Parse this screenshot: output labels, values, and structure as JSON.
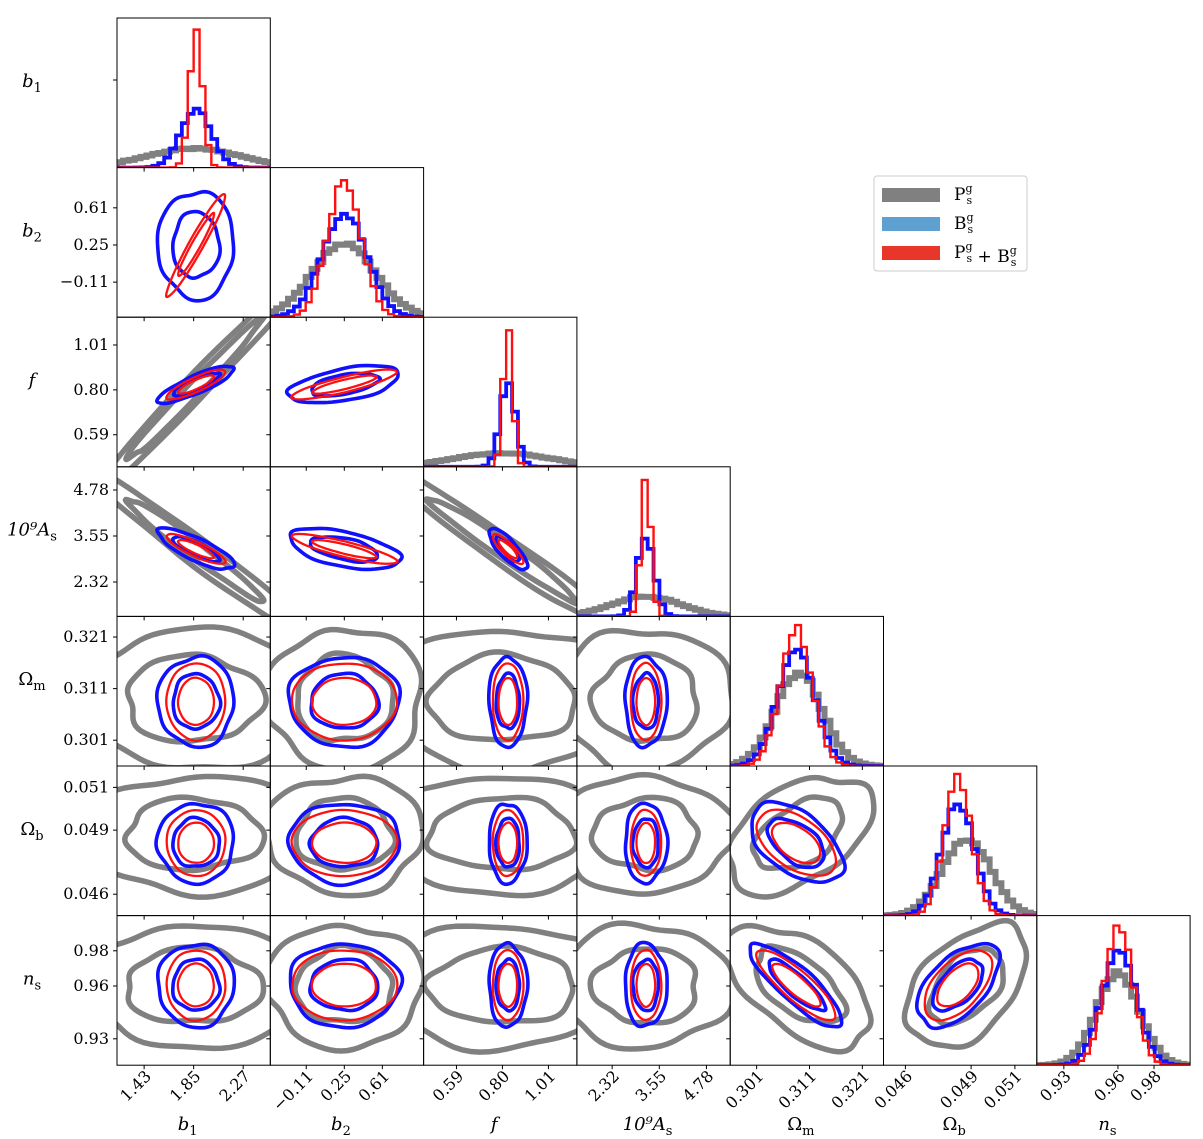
{
  "chart_data": {
    "type": "corner",
    "title": "",
    "parameters": [
      {
        "label_main": "b",
        "label_sub": "1",
        "label_style": "italic",
        "range": [
          1.2,
          2.5
        ],
        "ticks": [
          1.43,
          1.85,
          2.27
        ],
        "tick_labels": [
          "1.43",
          "1.85",
          "2.27"
        ]
      },
      {
        "label_main": "b",
        "label_sub": "2",
        "label_style": "italic",
        "range": [
          -0.45,
          1.0
        ],
        "ticks": [
          -0.11,
          0.25,
          0.61
        ],
        "tick_labels": [
          "−0.11",
          "0.25",
          "0.61"
        ]
      },
      {
        "label_main": "f",
        "label_sub": "",
        "label_style": "italic",
        "range": [
          0.44,
          1.14
        ],
        "ticks": [
          0.59,
          0.8,
          1.01
        ],
        "tick_labels": [
          "0.59",
          "0.80",
          "1.01"
        ]
      },
      {
        "label_main": "10⁹A",
        "label_sub": "s",
        "label_style": "mixed",
        "range": [
          1.4,
          5.4
        ],
        "ticks": [
          2.32,
          3.55,
          4.78
        ],
        "tick_labels": [
          "2.32",
          "3.55",
          "4.78"
        ]
      },
      {
        "label_main": "Ω",
        "label_sub": "m",
        "label_style": "roman",
        "range": [
          0.296,
          0.325
        ],
        "ticks": [
          0.301,
          0.311,
          0.321
        ],
        "tick_labels": [
          "0.301",
          "0.311",
          "0.321"
        ]
      },
      {
        "label_main": "Ω",
        "label_sub": "b",
        "label_style": "roman",
        "range": [
          0.045,
          0.052
        ],
        "ticks": [
          0.046,
          0.049,
          0.051
        ],
        "tick_labels": [
          "0.046",
          "0.049",
          "0.051"
        ]
      },
      {
        "label_main": "n",
        "label_sub": "s",
        "label_style": "italic",
        "range": [
          0.915,
          1.0
        ],
        "ticks": [
          0.93,
          0.96,
          0.98
        ],
        "tick_labels": [
          "0.93",
          "0.96",
          "0.98"
        ]
      }
    ],
    "series": [
      {
        "name": "P_s^g",
        "legend_main": "P",
        "legend_sup": "g",
        "legend_sub": "s",
        "color": "#808080",
        "means": [
          1.85,
          0.25,
          0.8,
          3.2,
          0.309,
          0.0488,
          0.96
        ],
        "sigmas": [
          0.38,
          0.3,
          0.22,
          0.9,
          0.0055,
          0.0011,
          0.014
        ],
        "correlations": [
          [
            0,
            2,
            0.99
          ],
          [
            0,
            3,
            -0.98
          ],
          [
            2,
            3,
            -0.98
          ],
          [
            4,
            6,
            -0.55
          ],
          [
            5,
            6,
            0.45
          ],
          [
            4,
            5,
            0.45
          ]
        ],
        "pairs": [
          [
            0,
            2
          ],
          [
            0,
            3
          ],
          [
            2,
            3
          ],
          [
            0,
            4
          ],
          [
            1,
            4
          ],
          [
            2,
            4
          ],
          [
            3,
            4
          ],
          [
            0,
            5
          ],
          [
            1,
            5
          ],
          [
            2,
            5
          ],
          [
            3,
            5
          ],
          [
            4,
            5
          ],
          [
            0,
            6
          ],
          [
            1,
            6
          ],
          [
            2,
            6
          ],
          [
            3,
            6
          ],
          [
            4,
            6
          ],
          [
            5,
            6
          ]
        ],
        "hist_sigmas": [
          0.4,
          0.3,
          0.22,
          0.9,
          0.0045,
          0.0011,
          0.012
        ]
      },
      {
        "name": "B_s^g",
        "legend_main": "B",
        "legend_sup": "g",
        "legend_sub": "s",
        "color": "#1010ff",
        "legend_color": "#5ea1d1",
        "means": [
          1.87,
          0.25,
          0.825,
          3.2,
          0.3085,
          0.0484,
          0.9605
        ],
        "sigmas": [
          0.13,
          0.21,
          0.035,
          0.22,
          0.0035,
          0.00075,
          0.0095
        ],
        "correlations": [
          [
            0,
            2,
            0.85
          ],
          [
            0,
            3,
            -0.8
          ],
          [
            2,
            3,
            -0.8
          ],
          [
            1,
            2,
            0.5
          ],
          [
            1,
            3,
            -0.5
          ],
          [
            4,
            6,
            -0.85
          ],
          [
            5,
            6,
            0.55
          ],
          [
            4,
            5,
            -0.5
          ]
        ],
        "hist_sigmas": [
          0.13,
          0.21,
          0.035,
          0.22,
          0.0035,
          0.00075,
          0.0095
        ]
      },
      {
        "name": "P_s^g + B_s^g",
        "legend_main": "P",
        "legend_sup": "g",
        "legend_sub": "s",
        "legend_main2": "B",
        "legend_sup2": "g",
        "legend_sub2": "s",
        "legend_join": " + ",
        "color": "#ff1010",
        "legend_color": "#e8372a",
        "means": [
          1.87,
          0.25,
          0.825,
          3.2,
          0.3085,
          0.0484,
          0.9605
        ],
        "sigmas": [
          0.1,
          0.2,
          0.028,
          0.16,
          0.003,
          0.00062,
          0.008
        ],
        "correlations": [
          [
            0,
            1,
            0.96
          ],
          [
            0,
            2,
            0.85
          ],
          [
            0,
            3,
            -0.85
          ],
          [
            2,
            3,
            -0.85
          ],
          [
            1,
            2,
            0.85
          ],
          [
            1,
            3,
            -0.85
          ],
          [
            4,
            6,
            -0.85
          ],
          [
            5,
            6,
            0.55
          ],
          [
            4,
            5,
            -0.5
          ]
        ],
        "hist_sigmas": [
          0.055,
          0.16,
          0.022,
          0.13,
          0.003,
          0.00062,
          0.008
        ]
      }
    ],
    "legend": {
      "position": "upper-right"
    }
  }
}
